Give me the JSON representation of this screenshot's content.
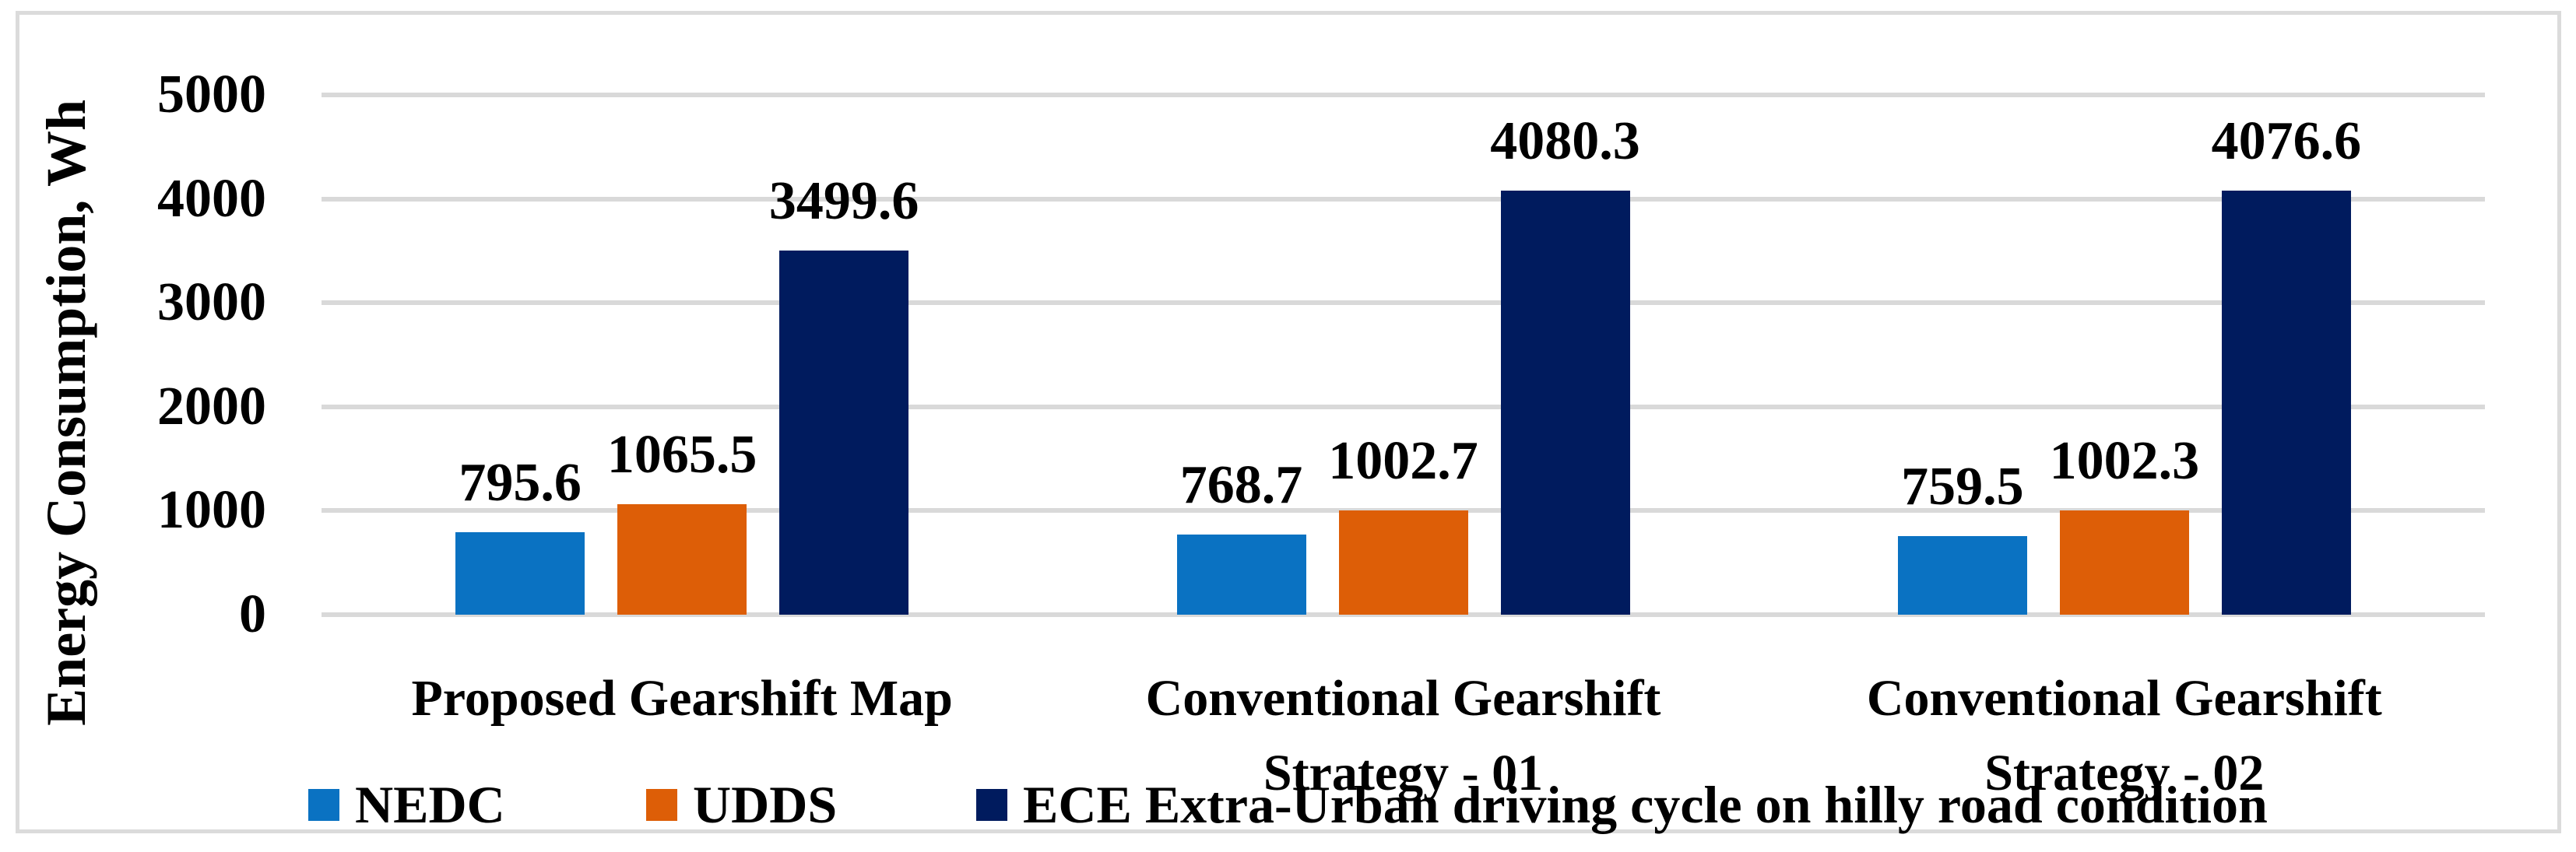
{
  "figure": {
    "background_color": "#FFFFFF",
    "frame_border_color": "#DBDBDB",
    "gridline_color": "#D9D9D9"
  },
  "chart_data": {
    "type": "bar",
    "title": "",
    "xlabel": "",
    "ylabel": "Energy Consumption, Wh",
    "ylim": [
      0,
      5000
    ],
    "ytick_step": 1000,
    "yticks": [
      "0",
      "1000",
      "2000",
      "3000",
      "4000",
      "5000"
    ],
    "grid": "horizontal",
    "legend_position": "bottom",
    "categories": [
      "Proposed Gearshift Map",
      "Conventional Gearshift Strategy - 01",
      "Conventional Gearshift Strategy - 02"
    ],
    "categories_lines": [
      [
        "Proposed Gearshift Map"
      ],
      [
        "Conventional Gearshift",
        "Strategy - 01"
      ],
      [
        "Conventional Gearshift",
        "Strategy - 02"
      ]
    ],
    "series": [
      {
        "name": "NEDC",
        "color": "#0A72C2",
        "values": [
          795.6,
          768.7,
          759.5
        ],
        "labels": [
          "795.6",
          "768.7",
          "759.5"
        ]
      },
      {
        "name": "UDDS",
        "color": "#DD5E07",
        "values": [
          1065.5,
          1002.7,
          1002.3
        ],
        "labels": [
          "1065.5",
          "1002.7",
          "1002.3"
        ]
      },
      {
        "name": "ECE Extra-Urban driving cycle on hilly road condition",
        "color": "#001B5E",
        "values": [
          3499.6,
          4080.3,
          4076.6
        ],
        "labels": [
          "3499.6",
          "4080.3",
          "4076.6"
        ]
      }
    ]
  }
}
